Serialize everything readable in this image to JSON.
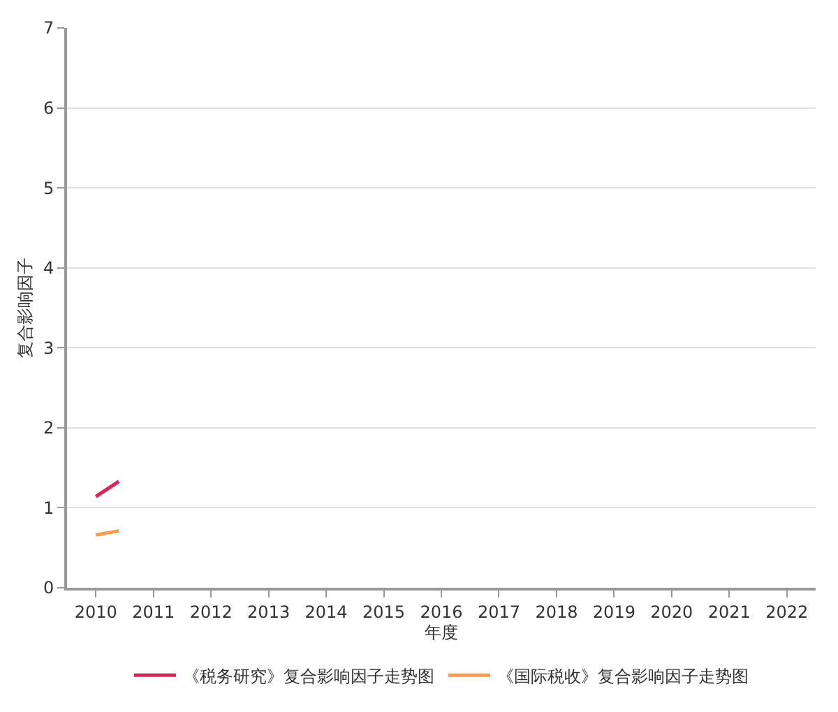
{
  "chart_data": {
    "type": "line",
    "xlabel": "年度",
    "ylabel": "复合影响因子",
    "x": [
      2010,
      2010.4
    ],
    "xlim": [
      2009.5,
      2022.5
    ],
    "xticks": [
      2010,
      2011,
      2012,
      2013,
      2014,
      2015,
      2016,
      2017,
      2018,
      2019,
      2020,
      2021,
      2022
    ],
    "ylim": [
      0,
      7
    ],
    "yticks": [
      0,
      1,
      2,
      3,
      4,
      5,
      6,
      7
    ],
    "grid": "y",
    "legend": "bottom",
    "marker": "none",
    "line_style": "solid",
    "series": [
      {
        "name": "《税务研究》复合影响因子走势图",
        "color": "#dc2358",
        "values": [
          1.14,
          1.33
        ]
      },
      {
        "name": "《国际税收》复合影响因子走势图",
        "color": "#fd9a4e",
        "values": [
          0.66,
          0.71
        ]
      }
    ]
  }
}
